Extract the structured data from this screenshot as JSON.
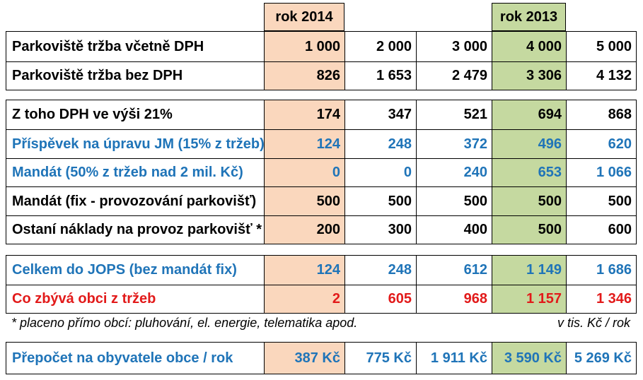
{
  "header": {
    "year_col1": "rok 2014",
    "year_col4": "rok 2013"
  },
  "colors": {
    "highlight_2014": "#fad7bd",
    "highlight_2013": "#c5d9a0",
    "blue": "#1f74b8",
    "red": "#e21a1a"
  },
  "rows": [
    {
      "label": "Parkoviště tržba včetně DPH",
      "values": [
        "1 000",
        "2 000",
        "3 000",
        "4 000",
        "5 000"
      ]
    },
    {
      "label": "Parkoviště tržba bez DPH",
      "values": [
        "826",
        "1 653",
        "2 479",
        "3 306",
        "4 132"
      ]
    },
    {
      "label": "Z toho DPH ve výši 21%",
      "values": [
        "174",
        "347",
        "521",
        "694",
        "868"
      ]
    },
    {
      "label": "Příspěvek na úpravu JM (15% z tržeb)",
      "values": [
        "124",
        "248",
        "372",
        "496",
        "620"
      ]
    },
    {
      "label": "Mandát (50% z tržeb nad 2 mil. Kč)",
      "values": [
        "0",
        "0",
        "240",
        "653",
        "1 066"
      ]
    },
    {
      "label": "Mandát (fix - provozování parkovišť)",
      "values": [
        "500",
        "500",
        "500",
        "500",
        "500"
      ]
    },
    {
      "label": "Ostaní náklady na provoz parkovišť *",
      "values": [
        "200",
        "300",
        "400",
        "500",
        "600"
      ]
    },
    {
      "label": "Celkem do JOPS (bez mandát fix)",
      "values": [
        "124",
        "248",
        "612",
        "1 149",
        "1 686"
      ]
    },
    {
      "label": "Co zbývá obci z tržeb",
      "values": [
        "2",
        "605",
        "968",
        "1 157",
        "1 346"
      ]
    },
    {
      "label": "Přepočet na obyvatele obce / rok",
      "values": [
        "387 Kč",
        "775 Kč",
        "1 911 Kč",
        "3 590 Kč",
        "5 269 Kč"
      ]
    }
  ],
  "notes": {
    "footnote": "* placeno přímo obcí: pluhování, el. energie, telematika apod.",
    "units": "v tis. Kč / rok"
  }
}
